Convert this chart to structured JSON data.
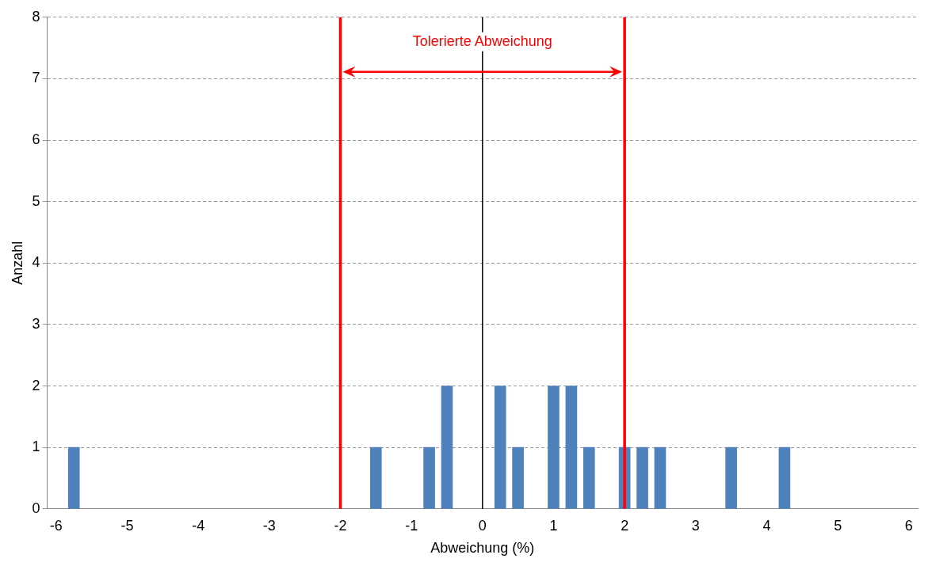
{
  "chart_data": {
    "type": "bar",
    "xlabel": "Abweichung (%)",
    "ylabel": "Anzahl",
    "x": [
      -5.75,
      -1.5,
      -0.75,
      -0.5,
      0.25,
      0.5,
      1,
      1.25,
      1.5,
      2,
      2.25,
      2.5,
      3.5,
      4.25
    ],
    "values": [
      1,
      1,
      1,
      2,
      2,
      1,
      2,
      2,
      1,
      1,
      1,
      1,
      1,
      1
    ],
    "color": "#4f81bd",
    "xlim": [
      -6.125,
      6.125
    ],
    "xticks": [
      -6,
      -5,
      -4,
      -3,
      -2,
      -1,
      0,
      1,
      2,
      3,
      4,
      5,
      6
    ],
    "ylim": [
      0,
      8
    ],
    "yticks": [
      0,
      1,
      2,
      3,
      4,
      5,
      6,
      7,
      8
    ],
    "grid": "y",
    "legend": false,
    "ref_lines": [
      {
        "axis": "x",
        "value": -2,
        "color": "#ff0000"
      },
      {
        "axis": "x",
        "value": 2,
        "color": "#ff0000"
      },
      {
        "axis": "x",
        "value": 0,
        "color": "#000000"
      }
    ],
    "annotations": [
      {
        "text": "Tolerierte Abweichung",
        "x": 0,
        "y": 7.6
      }
    ]
  }
}
